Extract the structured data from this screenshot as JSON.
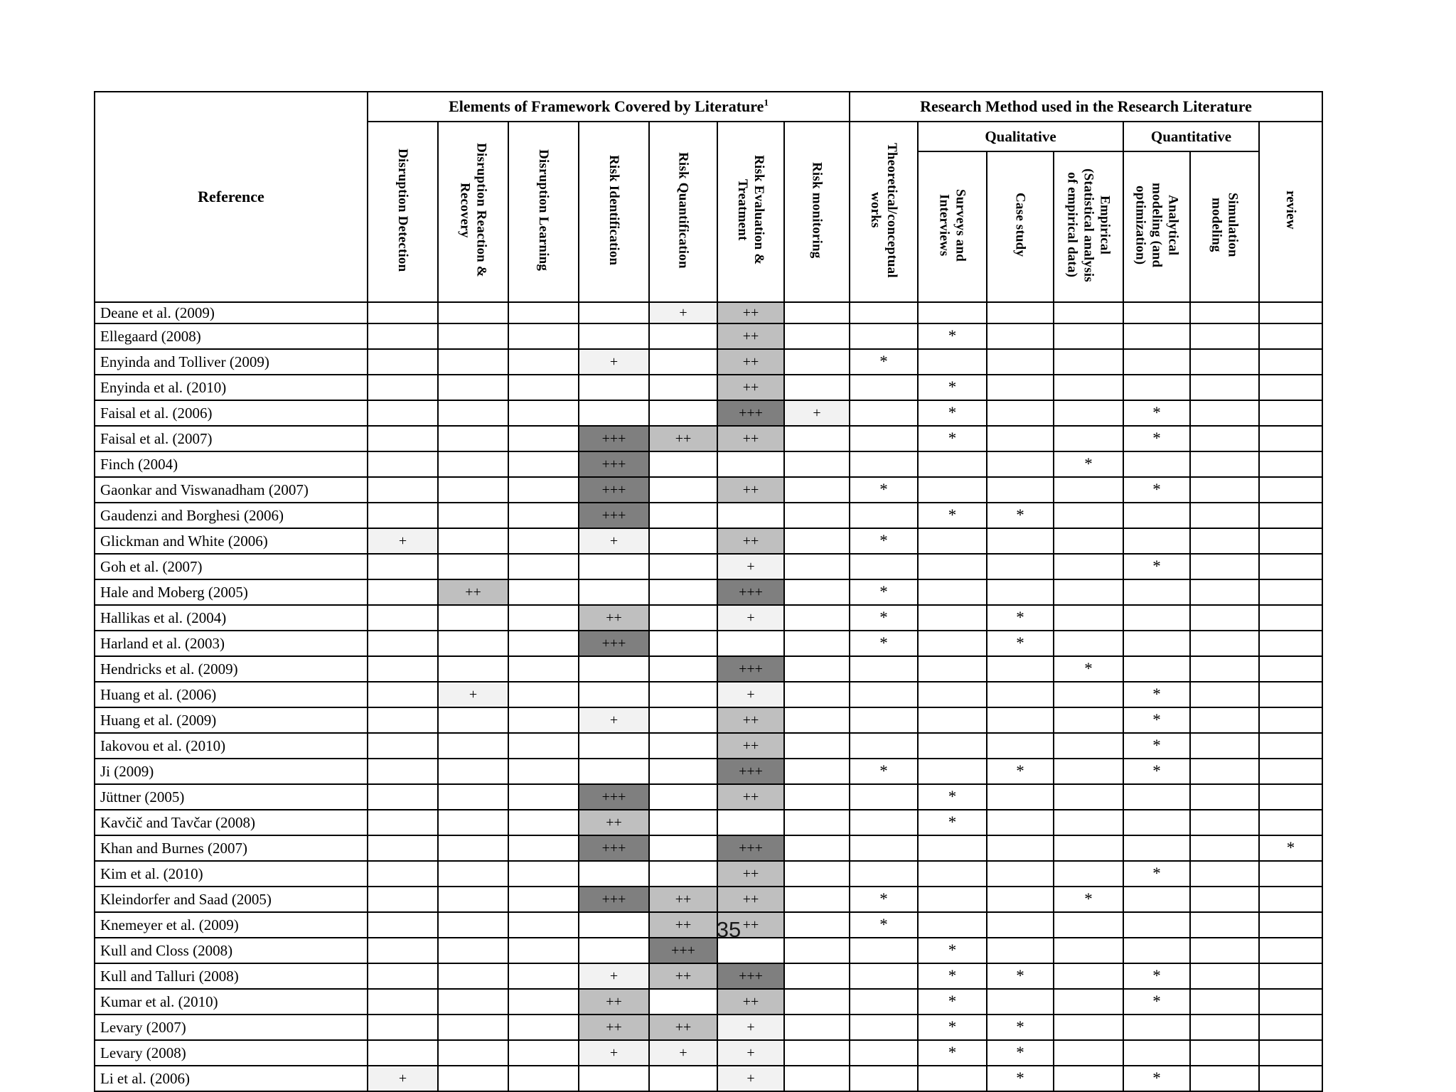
{
  "page": {
    "number": "35"
  },
  "table": {
    "corner_label": "Reference",
    "framework_group": {
      "label": "Elements of Framework Covered by Literature",
      "superscript": "1"
    },
    "methods_group": {
      "label": "Research Method used in the Research Literature"
    },
    "qualitative_label": "Qualitative",
    "quantitative_label": "Quantitative",
    "framework_columns": [
      "Disruption Detection",
      "Disruption Reaction &\nRecovery",
      "Disruption Learning",
      "Risk Identification",
      "Risk Quantification",
      "Risk Evaluation &\nTreatment",
      "Risk monitoring"
    ],
    "theoretical_column": "Theoretical/conceptual\nworks",
    "qualitative_columns": [
      "Surveys and\nInterviews",
      "Case study",
      "Empirical\n(Statistical analysis\nof empirical data)"
    ],
    "quantitative_columns": [
      "Analytical\nmodeling (and\noptimization)",
      "Simulation\nmodeling"
    ],
    "review_column": "review",
    "symbol_colors": {
      "+": "#f2f2f2",
      "++": "#bfbfbf",
      "+++": "#7f7f7f"
    },
    "rows": [
      {
        "reference": "Deane et al. (2009)",
        "cells": [
          "",
          "",
          "",
          "",
          "+",
          "++",
          "",
          "",
          "",
          "",
          "",
          "",
          "",
          ""
        ]
      },
      {
        "reference": "Ellegaard (2008)",
        "cells": [
          "",
          "",
          "",
          "",
          "",
          "++",
          "",
          "",
          "*",
          "",
          "",
          "",
          "",
          ""
        ]
      },
      {
        "reference": "Enyinda and Tolliver (2009)",
        "cells": [
          "",
          "",
          "",
          "+",
          "",
          "++",
          "",
          "*",
          "",
          "",
          "",
          "",
          "",
          ""
        ]
      },
      {
        "reference": "Enyinda et al. (2010)",
        "cells": [
          "",
          "",
          "",
          "",
          "",
          "++",
          "",
          "",
          "*",
          "",
          "",
          "",
          "",
          ""
        ]
      },
      {
        "reference": "Faisal et al. (2006)",
        "cells": [
          "",
          "",
          "",
          "",
          "",
          "+++",
          "+",
          "",
          "*",
          "",
          "",
          "*",
          "",
          ""
        ]
      },
      {
        "reference": "Faisal et al. (2007)",
        "cells": [
          "",
          "",
          "",
          "+++",
          "++",
          "++",
          "",
          "",
          "*",
          "",
          "",
          "*",
          "",
          ""
        ]
      },
      {
        "reference": "Finch (2004)",
        "cells": [
          "",
          "",
          "",
          "+++",
          "",
          "",
          "",
          "",
          "",
          "",
          "*",
          "",
          "",
          ""
        ]
      },
      {
        "reference": "Gaonkar and Viswanadham (2007)",
        "cells": [
          "",
          "",
          "",
          "+++",
          "",
          "++",
          "",
          "*",
          "",
          "",
          "",
          "*",
          "",
          ""
        ]
      },
      {
        "reference": "Gaudenzi and Borghesi (2006)",
        "cells": [
          "",
          "",
          "",
          "+++",
          "",
          "",
          "",
          "",
          "*",
          "*",
          "",
          "",
          "",
          ""
        ]
      },
      {
        "reference": "Glickman and White (2006)",
        "cells": [
          "+",
          "",
          "",
          "+",
          "",
          "++",
          "",
          "*",
          "",
          "",
          "",
          "",
          "",
          ""
        ]
      },
      {
        "reference": "Goh et al. (2007)",
        "cells": [
          "",
          "",
          "",
          "",
          "",
          "+",
          "",
          "",
          "",
          "",
          "",
          "*",
          "",
          ""
        ]
      },
      {
        "reference": "Hale and Moberg (2005)",
        "cells": [
          "",
          "++",
          "",
          "",
          "",
          "+++",
          "",
          "*",
          "",
          "",
          "",
          "",
          "",
          ""
        ]
      },
      {
        "reference": "Hallikas et al. (2004)",
        "cells": [
          "",
          "",
          "",
          "++",
          "",
          "+",
          "",
          "*",
          "",
          "*",
          "",
          "",
          "",
          ""
        ]
      },
      {
        "reference": "Harland et al. (2003)",
        "cells": [
          "",
          "",
          "",
          "+++",
          "",
          "",
          "",
          "*",
          "",
          "*",
          "",
          "",
          "",
          ""
        ]
      },
      {
        "reference": "Hendricks et al. (2009)",
        "cells": [
          "",
          "",
          "",
          "",
          "",
          "+++",
          "",
          "",
          "",
          "",
          "*",
          "",
          "",
          ""
        ]
      },
      {
        "reference": "Huang et al. (2006)",
        "cells": [
          "",
          "+",
          "",
          "",
          "",
          "+",
          "",
          "",
          "",
          "",
          "",
          "*",
          "",
          ""
        ]
      },
      {
        "reference": "Huang et al. (2009)",
        "cells": [
          "",
          "",
          "",
          "+",
          "",
          "++",
          "",
          "",
          "",
          "",
          "",
          "*",
          "",
          ""
        ]
      },
      {
        "reference": "Iakovou et al. (2010)",
        "cells": [
          "",
          "",
          "",
          "",
          "",
          "++",
          "",
          "",
          "",
          "",
          "",
          "*",
          "",
          ""
        ]
      },
      {
        "reference": "Ji (2009)",
        "cells": [
          "",
          "",
          "",
          "",
          "",
          "+++",
          "",
          "*",
          "",
          "*",
          "",
          "*",
          "",
          ""
        ]
      },
      {
        "reference": "Jüttner (2005)",
        "cells": [
          "",
          "",
          "",
          "+++",
          "",
          "++",
          "",
          "",
          "*",
          "",
          "",
          "",
          "",
          ""
        ]
      },
      {
        "reference": "Kavčič and Tavčar (2008)",
        "cells": [
          "",
          "",
          "",
          "++",
          "",
          "",
          "",
          "",
          "*",
          "",
          "",
          "",
          "",
          ""
        ]
      },
      {
        "reference": "Khan and Burnes (2007)",
        "cells": [
          "",
          "",
          "",
          "+++",
          "",
          "+++",
          "",
          "",
          "",
          "",
          "",
          "",
          "",
          "*"
        ]
      },
      {
        "reference": "Kim et al. (2010)",
        "cells": [
          "",
          "",
          "",
          "",
          "",
          "++",
          "",
          "",
          "",
          "",
          "",
          "*",
          "",
          ""
        ]
      },
      {
        "reference": "Kleindorfer and Saad (2005)",
        "cells": [
          "",
          "",
          "",
          "+++",
          "++",
          "++",
          "",
          "*",
          "",
          "",
          "*",
          "",
          "",
          ""
        ]
      },
      {
        "reference": "Knemeyer et al. (2009)",
        "cells": [
          "",
          "",
          "",
          "",
          "++",
          "++",
          "",
          "*",
          "",
          "",
          "",
          "",
          "",
          ""
        ]
      },
      {
        "reference": "Kull and Closs (2008)",
        "cells": [
          "",
          "",
          "",
          "",
          "+++",
          "",
          "",
          "",
          "*",
          "",
          "",
          "",
          "",
          ""
        ]
      },
      {
        "reference": "Kull and Talluri (2008)",
        "cells": [
          "",
          "",
          "",
          "+",
          "++",
          "+++",
          "",
          "",
          "*",
          "*",
          "",
          "*",
          "",
          ""
        ]
      },
      {
        "reference": "Kumar et al. (2010)",
        "cells": [
          "",
          "",
          "",
          "++",
          "",
          "++",
          "",
          "",
          "*",
          "",
          "",
          "*",
          "",
          ""
        ]
      },
      {
        "reference": "Levary (2007)",
        "cells": [
          "",
          "",
          "",
          "++",
          "++",
          "+",
          "",
          "",
          "*",
          "*",
          "",
          "",
          "",
          ""
        ]
      },
      {
        "reference": "Levary (2008)",
        "cells": [
          "",
          "",
          "",
          "+",
          "+",
          "+",
          "",
          "",
          "*",
          "*",
          "",
          "",
          "",
          ""
        ]
      },
      {
        "reference": "Li et al. (2006)",
        "cells": [
          "+",
          "",
          "",
          "",
          "",
          "+",
          "",
          "",
          "",
          "*",
          "",
          "*",
          "",
          ""
        ]
      }
    ]
  }
}
